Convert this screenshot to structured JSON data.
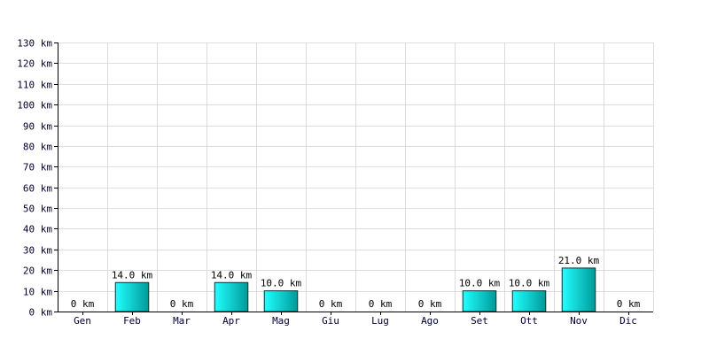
{
  "chart_data": {
    "type": "bar",
    "categories": [
      "Gen",
      "Feb",
      "Mar",
      "Apr",
      "Mag",
      "Giu",
      "Lug",
      "Ago",
      "Set",
      "Ott",
      "Nov",
      "Dic"
    ],
    "values": [
      0,
      14,
      0,
      14,
      10,
      0,
      0,
      0,
      10,
      10,
      21,
      0
    ],
    "data_labels": [
      "0 km",
      "14.0 km",
      "0 km",
      "14.0 km",
      "10.0 km",
      "0 km",
      "0 km",
      "0 km",
      "10.0 km",
      "10.0 km",
      "21.0 km",
      "0 km"
    ],
    "y_tick_labels": [
      "0 km",
      "10 km",
      "20 km",
      "30 km",
      "40 km",
      "50 km",
      "60 km",
      "70 km",
      "80 km",
      "90 km",
      "100 km",
      "110 km",
      "120 km",
      "130 km"
    ],
    "ylim": [
      0,
      130
    ],
    "y_step": 10,
    "grid": true,
    "colors": {
      "bar_light": "#22ffff",
      "bar_dark": "#009999",
      "bar_edge": "#003333",
      "grid": "#dddddd",
      "axis": "#000000"
    }
  }
}
